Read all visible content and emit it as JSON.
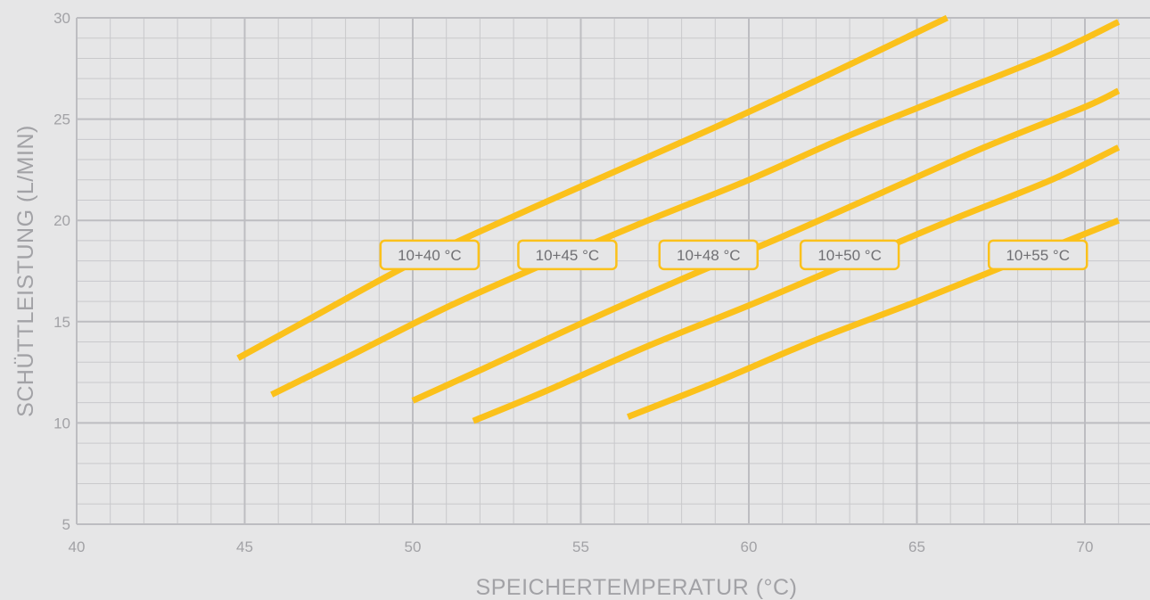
{
  "chart_data": {
    "type": "line",
    "xlabel": "SPEICHERTEMPERATUR (°C)",
    "ylabel": "SCHÜTTLEISTUNG (L/MIN)",
    "xlim": [
      40,
      71
    ],
    "ylim": [
      5,
      30
    ],
    "x_ticks": [
      40,
      45,
      50,
      55,
      60,
      65,
      70
    ],
    "y_ticks": [
      5,
      10,
      15,
      20,
      25,
      30
    ],
    "grid": true,
    "minor_grid_x": 1,
    "minor_grid_y": 1,
    "line_color": "#fbc11b",
    "series": [
      {
        "name": "10+40 °C",
        "x": [
          44.8,
          47,
          50,
          53,
          56,
          59,
          62,
          65.9
        ],
        "y": [
          13.2,
          15.2,
          17.9,
          20.2,
          22.4,
          24.6,
          26.9,
          30.0
        ],
        "label_at": [
          50.5,
          18.3
        ]
      },
      {
        "name": "10+45 °C",
        "x": [
          45.8,
          48,
          51,
          54,
          57,
          60,
          63,
          66,
          69,
          71
        ],
        "y": [
          11.4,
          13.2,
          15.7,
          17.9,
          20.0,
          22.0,
          24.2,
          26.2,
          28.2,
          29.8
        ],
        "label_at": [
          54.6,
          18.3
        ]
      },
      {
        "name": "10+48 °C",
        "x": [
          50,
          52,
          55,
          58,
          61,
          64,
          67,
          70,
          71
        ],
        "y": [
          11.1,
          12.6,
          14.9,
          17.1,
          19.2,
          21.4,
          23.6,
          25.6,
          26.4
        ],
        "label_at": [
          58.8,
          18.3
        ]
      },
      {
        "name": "10+50 °C",
        "x": [
          51.8,
          54,
          57,
          60,
          63,
          66,
          69,
          71
        ],
        "y": [
          10.1,
          11.6,
          13.8,
          15.8,
          17.9,
          20.0,
          22.0,
          23.6
        ],
        "label_at": [
          63.0,
          18.3
        ]
      },
      {
        "name": "10+55 °C",
        "x": [
          56.4,
          59,
          62,
          65,
          68,
          71
        ],
        "y": [
          10.3,
          12.0,
          14.1,
          16.0,
          18.0,
          20.0
        ],
        "label_at": [
          68.6,
          18.3
        ]
      }
    ]
  }
}
